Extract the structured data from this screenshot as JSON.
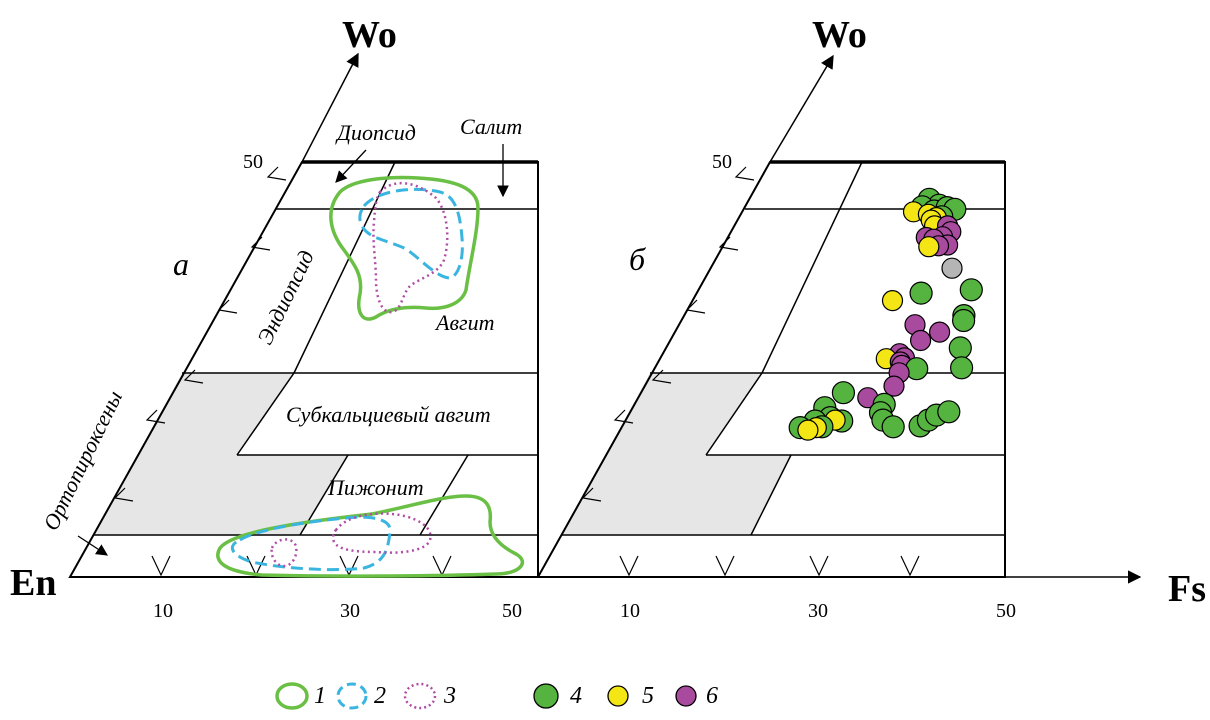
{
  "axes": {
    "apex_label": "Wo",
    "left_corner_label": "En",
    "right_axis_label": "Fs",
    "wo_tick": "50",
    "fs_ticks": [
      "10",
      "30",
      "50"
    ]
  },
  "panel_a": {
    "letter": "а",
    "fields": {
      "diopside": "Диопсид",
      "salite": "Салит",
      "endiopside": "Эндиопсид",
      "augite": "Авгит",
      "subcalcic_augite": "Субкальциевый авгит",
      "pigeonite": "Пижонит",
      "orthopyroxenes": "Ортопироксены"
    }
  },
  "panel_b": {
    "letter": "б"
  },
  "legend": [
    {
      "num": "1",
      "kind": "contour",
      "style": "solid",
      "color": "#6abf45"
    },
    {
      "num": "2",
      "kind": "contour",
      "style": "dashed",
      "color": "#39b5e0"
    },
    {
      "num": "3",
      "kind": "contour",
      "style": "dotted",
      "color": "#b04ea6"
    },
    {
      "num": "4",
      "kind": "dot",
      "color": "#55b340"
    },
    {
      "num": "5",
      "kind": "dot",
      "color": "#f3e614"
    },
    {
      "num": "6",
      "kind": "dot",
      "color": "#a84a9e"
    }
  ],
  "colors": {
    "opx_fill": "#e6e6e6",
    "grey_dot": "#b5b5b5"
  },
  "points": [
    {
      "fs": 35.2,
      "wo": 45.5,
      "g": "4"
    },
    {
      "fs": 37.3,
      "wo": 44.8,
      "g": "4"
    },
    {
      "fs": 34.1,
      "wo": 44.6,
      "g": "4"
    },
    {
      "fs": 36.5,
      "wo": 44.1,
      "g": "4"
    },
    {
      "fs": 38.9,
      "wo": 44.5,
      "g": "4"
    },
    {
      "fs": 40.4,
      "wo": 44.3,
      "g": "4"
    },
    {
      "fs": 38.1,
      "wo": 43.4,
      "g": "4"
    },
    {
      "fs": 32.6,
      "wo": 44.0,
      "g": "5"
    },
    {
      "fs": 35.5,
      "wo": 43.7,
      "g": "5"
    },
    {
      "fs": 37.1,
      "wo": 43.3,
      "g": "5"
    },
    {
      "fs": 36.2,
      "wo": 43.0,
      "g": "5"
    },
    {
      "fs": 37.0,
      "wo": 42.3,
      "g": "5"
    },
    {
      "fs": 39.4,
      "wo": 42.3,
      "g": "6"
    },
    {
      "fs": 40.1,
      "wo": 41.6,
      "g": "6"
    },
    {
      "fs": 38.7,
      "wo": 41.0,
      "g": "6"
    },
    {
      "fs": 35.8,
      "wo": 40.9,
      "g": "6"
    },
    {
      "fs": 37.2,
      "wo": 40.7,
      "g": "6"
    },
    {
      "fs": 39.8,
      "wo": 40.0,
      "g": "6"
    },
    {
      "fs": 38.2,
      "wo": 39.9,
      "g": "6"
    },
    {
      "fs": 36.5,
      "wo": 39.8,
      "g": "5"
    },
    {
      "fs": 41.0,
      "wo": 37.2,
      "g": "grey"
    },
    {
      "fs": 36.4,
      "wo": 34.2,
      "g": "4"
    },
    {
      "fs": 44.5,
      "wo": 34.6,
      "g": "4"
    },
    {
      "fs": 32.0,
      "wo": 33.3,
      "g": "5"
    },
    {
      "fs": 43.6,
      "wo": 31.5,
      "g": "4"
    },
    {
      "fs": 43.6,
      "wo": 30.9,
      "g": "4"
    },
    {
      "fs": 36.2,
      "wo": 30.4,
      "g": "6"
    },
    {
      "fs": 40.1,
      "wo": 29.5,
      "g": "6"
    },
    {
      "fs": 37.4,
      "wo": 28.5,
      "g": "6"
    },
    {
      "fs": 43.4,
      "wo": 27.6,
      "g": "4"
    },
    {
      "fs": 34.6,
      "wo": 26.9,
      "g": "6"
    },
    {
      "fs": 35.4,
      "wo": 26.4,
      "g": "6"
    },
    {
      "fs": 32.8,
      "wo": 26.3,
      "g": "5"
    },
    {
      "fs": 34.9,
      "wo": 25.9,
      "g": "6"
    },
    {
      "fs": 35.2,
      "wo": 25.5,
      "g": "6"
    },
    {
      "fs": 37.4,
      "wo": 25.1,
      "g": "4"
    },
    {
      "fs": 43.8,
      "wo": 25.2,
      "g": "4"
    },
    {
      "fs": 35.0,
      "wo": 24.6,
      "g": "6"
    },
    {
      "fs": 34.6,
      "wo": 23.0,
      "g": "6"
    },
    {
      "fs": 27.8,
      "wo": 22.2,
      "g": "4"
    },
    {
      "fs": 31.3,
      "wo": 21.6,
      "g": "6"
    },
    {
      "fs": 33.7,
      "wo": 20.8,
      "g": "4"
    },
    {
      "fs": 25.8,
      "wo": 20.4,
      "g": "4"
    },
    {
      "fs": 33.4,
      "wo": 19.8,
      "g": "4"
    },
    {
      "fs": 26.9,
      "wo": 19.2,
      "g": "4"
    },
    {
      "fs": 25.0,
      "wo": 18.8,
      "g": "4"
    },
    {
      "fs": 28.5,
      "wo": 18.8,
      "g": "4"
    },
    {
      "fs": 27.6,
      "wo": 18.9,
      "g": "5"
    },
    {
      "fs": 26.1,
      "wo": 18.1,
      "g": "4"
    },
    {
      "fs": 23.3,
      "wo": 18.0,
      "g": "4"
    },
    {
      "fs": 25.4,
      "wo": 18.0,
      "g": "5"
    },
    {
      "fs": 24.4,
      "wo": 17.7,
      "g": "5"
    },
    {
      "fs": 33.9,
      "wo": 18.9,
      "g": "4"
    },
    {
      "fs": 35.4,
      "wo": 18.1,
      "g": "4"
    },
    {
      "fs": 38.9,
      "wo": 18.2,
      "g": "4"
    },
    {
      "fs": 39.9,
      "wo": 18.9,
      "g": "4"
    },
    {
      "fs": 40.9,
      "wo": 19.5,
      "g": "4"
    },
    {
      "fs": 42.5,
      "wo": 19.9,
      "g": "4"
    }
  ]
}
